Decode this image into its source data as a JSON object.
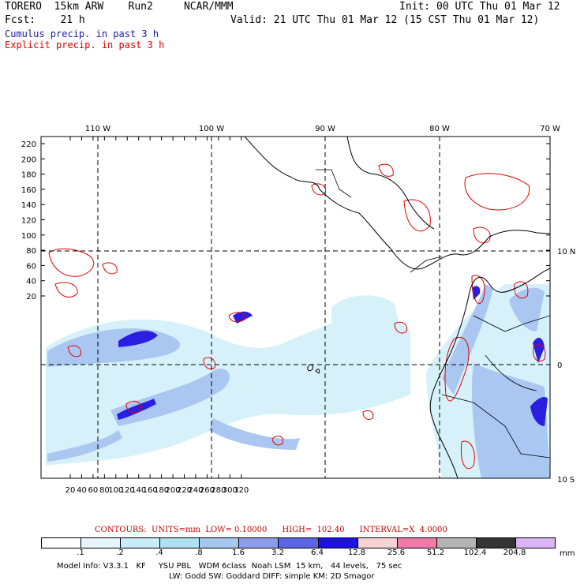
{
  "header": {
    "model_line": "TORERO  15km ARW    Run2     NCAR/MMM",
    "init": "Init: 00 UTC Thu 01 Mar 12",
    "fcst": "Fcst:    21 h",
    "valid": "Valid: 21 UTC Thu 01 Mar 12 (15 CST Thu 01 Mar 12)",
    "cumulus_label": "Cumulus precip. in past 3 h",
    "explicit_label": "Explicit precip. in past 3 h"
  },
  "map": {
    "top_lon_labels": [
      "110 W",
      "100 W",
      "90 W",
      "80 W",
      "70 W"
    ],
    "right_lat_labels": [
      "10 N",
      "0",
      "10 S"
    ],
    "y_ticks": [
      "220",
      "200",
      "180",
      "160",
      "140",
      "120",
      "100",
      "80",
      "60",
      "40",
      "20"
    ],
    "x_ticks": [
      "20",
      "40",
      "60",
      "80",
      "100",
      "120",
      "140",
      "160",
      "180",
      "200",
      "220",
      "240",
      "260",
      "280",
      "300",
      "320"
    ]
  },
  "contour_info": "CONTOURS:  UNITS=mm  LOW= 0.10000      HIGH=  102.40      INTERVAL=X  4.0000",
  "legend": {
    "values": [
      ".1",
      ".2",
      ".4",
      ".8",
      "1.6",
      "3.2",
      "6.4",
      "12.8",
      "25.6",
      "51.2",
      "102.4",
      "204.8"
    ],
    "units": "mm",
    "colors": [
      "#ffffff",
      "#e6f6fc",
      "#c8ecf8",
      "#aee2f2",
      "#a6c8f0",
      "#8e9cec",
      "#5c64e6",
      "#1e10e0",
      "#f6d2d2",
      "#f07aa8",
      "#b4b4b4",
      "#343434",
      "#dcb4f8"
    ]
  },
  "footer": {
    "line1": "Model Info: V3.3.1   KF     YSU PBL   WDM 6class  Noah LSM  15 km,   44 levels,   75 sec",
    "line2": "LW: Godd SW: Goddard DIFF: simple KM: 2D Smagor"
  }
}
